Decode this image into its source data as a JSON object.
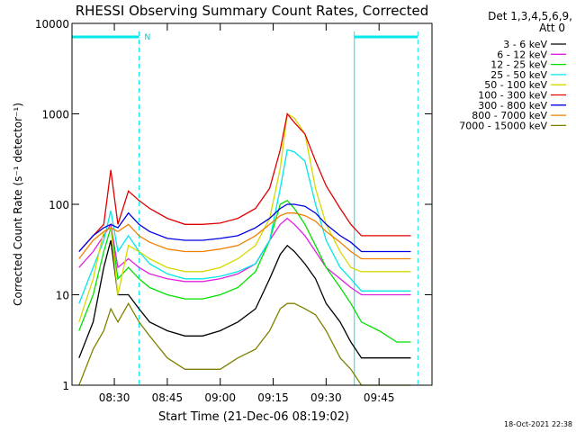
{
  "chart_data": {
    "type": "line",
    "title": "RHESSI Observing Summary Count Rates, Corrected",
    "xlabel": "Start Time (21-Dec-06 08:19:02)",
    "ylabel": "Corrected Count Rate (s⁻¹ detector⁻¹)",
    "legend_header": [
      "Det 1,3,4,5,6,9,",
      "Att 0"
    ],
    "legend_position": "right",
    "timestamp": "18-Oct-2021 22:38",
    "log_y": true,
    "ylim": [
      1,
      10000
    ],
    "yticks": [
      1,
      10,
      100,
      1000,
      10000
    ],
    "xlim": [
      "08:18",
      "10:00"
    ],
    "xticks": [
      "08:30",
      "08:45",
      "09:00",
      "09:15",
      "09:30",
      "09:45"
    ],
    "flag_label": "N",
    "flag_spans": [
      [
        "08:18",
        "08:37"
      ],
      [
        "09:38",
        "09:56"
      ]
    ],
    "x": [
      "08:20",
      "08:24",
      "08:27",
      "08:29",
      "08:31",
      "08:34",
      "08:37",
      "08:40",
      "08:45",
      "08:50",
      "08:55",
      "09:00",
      "09:05",
      "09:10",
      "09:14",
      "09:17",
      "09:19",
      "09:21",
      "09:24",
      "09:27",
      "09:30",
      "09:34",
      "09:37",
      "09:40",
      "09:45",
      "09:50",
      "09:54"
    ],
    "series": [
      {
        "name": "3 - 6 keV",
        "color": "#000000",
        "values": [
          2,
          5,
          20,
          40,
          10,
          10,
          7,
          5,
          4,
          3.5,
          3.5,
          4,
          5,
          7,
          15,
          28,
          35,
          30,
          22,
          15,
          8,
          5,
          3,
          2,
          2,
          2,
          2
        ]
      },
      {
        "name": "6 - 12 keV",
        "color": "#e020e0",
        "values": [
          20,
          30,
          45,
          60,
          20,
          25,
          20,
          17,
          15,
          14,
          14,
          15,
          17,
          22,
          40,
          60,
          70,
          60,
          45,
          30,
          20,
          15,
          12,
          10,
          10,
          10,
          10
        ]
      },
      {
        "name": "12 - 25 keV",
        "color": "#00e000",
        "values": [
          4,
          10,
          30,
          55,
          15,
          20,
          15,
          12,
          10,
          9,
          9,
          10,
          12,
          18,
          40,
          100,
          110,
          90,
          60,
          35,
          20,
          12,
          8,
          5,
          4,
          3,
          3
        ]
      },
      {
        "name": "25 - 50 keV",
        "color": "#00e8e8",
        "values": [
          8,
          20,
          40,
          85,
          30,
          45,
          30,
          22,
          17,
          15,
          15,
          16,
          18,
          22,
          40,
          150,
          400,
          380,
          300,
          100,
          40,
          20,
          15,
          11,
          11,
          11,
          11
        ]
      },
      {
        "name": "50 - 100 keV",
        "color": "#d8d800",
        "values": [
          5,
          15,
          50,
          55,
          10,
          35,
          30,
          25,
          20,
          18,
          18,
          20,
          25,
          35,
          70,
          250,
          1000,
          900,
          600,
          150,
          60,
          30,
          20,
          18,
          18,
          18,
          18
        ]
      },
      {
        "name": "100 - 300 keV",
        "color": "#e00000",
        "values": [
          30,
          45,
          60,
          240,
          60,
          140,
          110,
          90,
          70,
          60,
          60,
          62,
          70,
          90,
          150,
          400,
          1000,
          800,
          600,
          300,
          160,
          90,
          60,
          45,
          45,
          45,
          45
        ]
      },
      {
        "name": "300 - 800 keV",
        "color": "#0000e0",
        "values": [
          30,
          45,
          55,
          60,
          55,
          80,
          60,
          50,
          42,
          40,
          40,
          42,
          45,
          55,
          70,
          90,
          100,
          100,
          95,
          80,
          60,
          45,
          38,
          30,
          30,
          30,
          30
        ]
      },
      {
        "name": "800 - 7000 keV",
        "color": "#f08000",
        "values": [
          25,
          40,
          50,
          55,
          50,
          60,
          45,
          38,
          32,
          30,
          30,
          32,
          35,
          45,
          60,
          75,
          80,
          80,
          75,
          65,
          50,
          38,
          30,
          25,
          25,
          25,
          25
        ]
      },
      {
        "name": "7000 - 15000 keV",
        "color": "#808000",
        "values": [
          1,
          2.5,
          4,
          7,
          5,
          8,
          5,
          3.5,
          2,
          1.5,
          1.5,
          1.5,
          2,
          2.5,
          4,
          7,
          8,
          8,
          7,
          6,
          4,
          2,
          1.5,
          1,
          1,
          1,
          1
        ]
      }
    ]
  }
}
